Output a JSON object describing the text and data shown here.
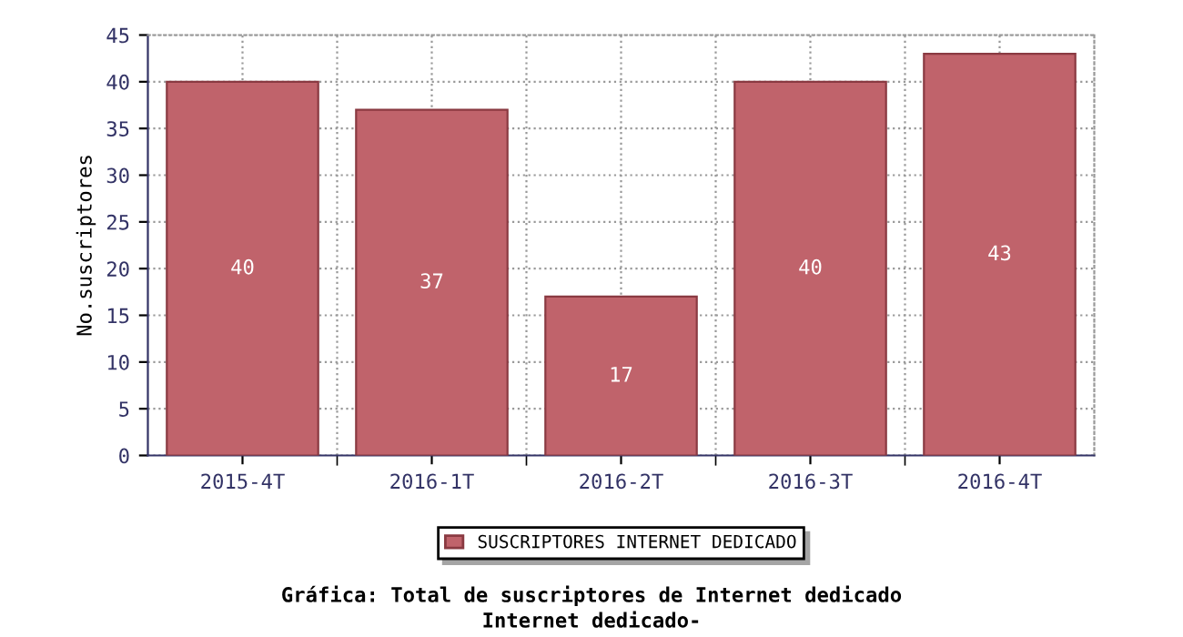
{
  "chart_data": {
    "type": "bar",
    "title": "Gráfica: Total de suscriptores de Internet dedicado",
    "subtitle": "Internet dedicado-",
    "ylabel": "No.suscriptores",
    "categories": [
      "2015-4T",
      "2016-1T",
      "2016-2T",
      "2016-3T",
      "2016-4T"
    ],
    "series": [
      {
        "name": "SUSCRIPTORES INTERNET DEDICADO",
        "color": "#c0636b",
        "values": [
          40,
          37,
          17,
          40,
          43
        ]
      }
    ],
    "ylim": [
      0,
      45
    ],
    "yticks": [
      0,
      5,
      10,
      15,
      20,
      25,
      30,
      35,
      40,
      45
    ],
    "grid": true,
    "legend": "bottom",
    "data_labels": true
  }
}
